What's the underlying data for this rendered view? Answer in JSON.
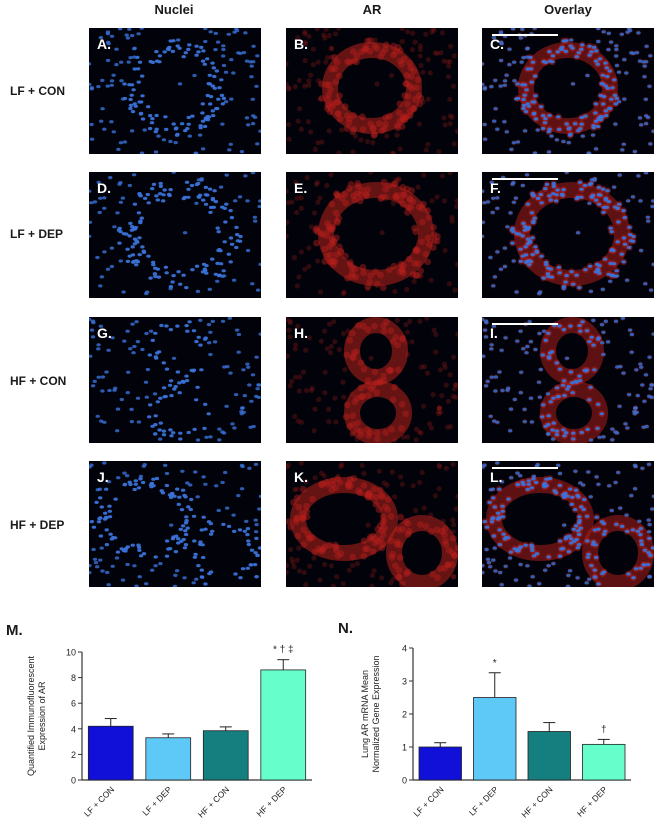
{
  "columns": [
    "Nuclei",
    "AR",
    "Overlay"
  ],
  "rows": [
    "LF + CON",
    "LF + DEP",
    "HF + CON",
    "HF + DEP"
  ],
  "panel_letters": [
    "A.",
    "B.",
    "C.",
    "D.",
    "E.",
    "F.",
    "G.",
    "H.",
    "I.",
    "J.",
    "K.",
    "L."
  ],
  "colors": {
    "nuclei": "#3a72d8",
    "ar": "#b8201c",
    "bar_lf_con": "#1010d8",
    "bar_lf_dep": "#5ec8f6",
    "bar_hf_con": "#157f80",
    "bar_hf_dep": "#66ffcc"
  },
  "chart_data": [
    {
      "id": "M.",
      "type": "bar",
      "categories": [
        "LF + CON",
        "LF + DEP",
        "HF + CON",
        "HF + DEP"
      ],
      "values": [
        4.2,
        3.3,
        3.85,
        8.6
      ],
      "errors": [
        0.6,
        0.3,
        0.3,
        0.8
      ],
      "annotations": [
        "",
        "",
        "",
        "* † ‡"
      ],
      "ylabel_lines": [
        "Quantified Immunofluorescent",
        "Expression of AR"
      ],
      "ylim": [
        0,
        10
      ],
      "yticks": [
        0,
        2,
        4,
        6,
        8,
        10
      ]
    },
    {
      "id": "N.",
      "type": "bar",
      "categories": [
        "LF + CON",
        "LF + DEP",
        "HF + CON",
        "HF + DEP"
      ],
      "values": [
        1.0,
        2.5,
        1.47,
        1.08
      ],
      "errors": [
        0.13,
        0.75,
        0.27,
        0.15
      ],
      "annotations": [
        "",
        "*",
        "",
        "†"
      ],
      "ylabel_lines": [
        "Lung AR mRNA Mean",
        "Normalized Gene Expression"
      ],
      "ylim": [
        0,
        4
      ],
      "yticks": [
        0,
        1,
        2,
        3,
        4
      ]
    }
  ]
}
